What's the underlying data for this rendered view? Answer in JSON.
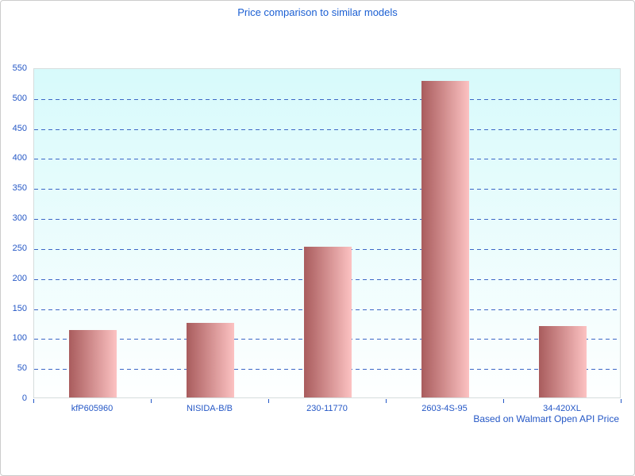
{
  "chart_data": {
    "type": "bar",
    "title": "Price comparison to similar models",
    "categories": [
      "kfP605960",
      "NISIDA-B/B",
      "230-11770",
      "2603-4S-95",
      "34-420XL"
    ],
    "values": [
      113,
      124,
      251,
      527,
      119
    ],
    "xlabel": "",
    "ylabel": "",
    "ylim": [
      0,
      550
    ],
    "ytick_step": 50,
    "grid": "horizontal-dashed",
    "legend_position": "none",
    "annotation": "Based on Walmart Open API Price"
  },
  "footer": {
    "text": "Based on Walmart Open API Price"
  },
  "colors": {
    "title_text": "#1b5fd3",
    "axis_text": "#2457c6",
    "gridline": "#3b66c6",
    "bar_gradient_start": "#a95c5d",
    "bar_gradient_end": "#fcc2c2",
    "plot_bg_top": "#d7fafb",
    "plot_bg_bottom": "#feffff",
    "plot_border": "#d6dddd",
    "page_border": "#cccccc",
    "page_background": "#ffffff"
  }
}
